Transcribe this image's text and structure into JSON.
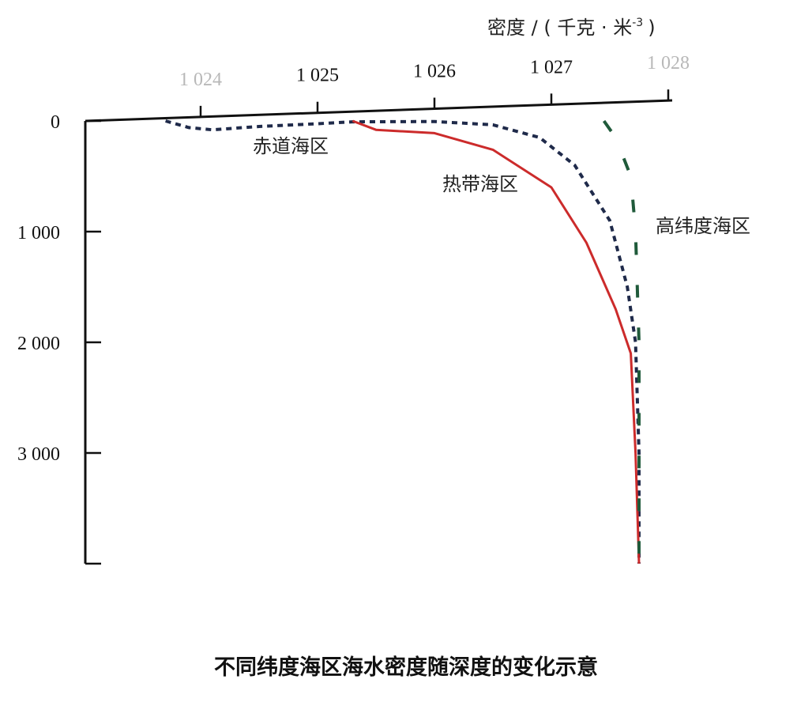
{
  "chart_data": {
    "type": "line",
    "x_axis_label": "密度 / ( 千克 · 米",
    "x_axis_label_exponent": "-3",
    "x_axis_label_close": ")",
    "x_ticks": [
      {
        "value": 1024,
        "label": "1 024",
        "faint": true
      },
      {
        "value": 1025,
        "label": "1 025",
        "faint": false
      },
      {
        "value": 1026,
        "label": "1 026",
        "faint": false
      },
      {
        "value": 1027,
        "label": "1 027",
        "faint": false
      },
      {
        "value": 1028,
        "label": "1 028",
        "faint": true
      }
    ],
    "y_ticks": [
      {
        "value": 0,
        "label": "0"
      },
      {
        "value": 1000,
        "label": "1 000"
      },
      {
        "value": 2000,
        "label": "2 000"
      },
      {
        "value": 3000,
        "label": "3 000"
      }
    ],
    "xlim": [
      1023,
      1028.2
    ],
    "ylim": [
      0,
      4000
    ],
    "series": [
      {
        "name": "赤道海区",
        "style": "dotted",
        "color": "#1f2a4a",
        "points": [
          [
            1023.7,
            0
          ],
          [
            1023.9,
            60
          ],
          [
            1024.1,
            80
          ],
          [
            1024.5,
            50
          ],
          [
            1025.0,
            25
          ],
          [
            1025.3,
            8
          ],
          [
            1026.0,
            5
          ],
          [
            1026.5,
            35
          ],
          [
            1026.9,
            150
          ],
          [
            1027.2,
            400
          ],
          [
            1027.5,
            900
          ],
          [
            1027.65,
            1500
          ],
          [
            1027.72,
            2000
          ],
          [
            1027.75,
            3000
          ],
          [
            1027.75,
            4000
          ]
        ]
      },
      {
        "name": "热带海区",
        "style": "solid",
        "color": "#cc2b2b",
        "points": [
          [
            1025.3,
            0
          ],
          [
            1025.5,
            80
          ],
          [
            1026.0,
            110
          ],
          [
            1026.5,
            260
          ],
          [
            1027.0,
            600
          ],
          [
            1027.3,
            1100
          ],
          [
            1027.55,
            1700
          ],
          [
            1027.68,
            2100
          ],
          [
            1027.72,
            3000
          ],
          [
            1027.75,
            4000
          ]
        ]
      },
      {
        "name": "高纬度海区",
        "style": "dashed",
        "color": "#1f5a3a",
        "points": [
          [
            1027.45,
            0
          ],
          [
            1027.55,
            150
          ],
          [
            1027.68,
            500
          ],
          [
            1027.72,
            1000
          ],
          [
            1027.75,
            2000
          ],
          [
            1027.75,
            3000
          ],
          [
            1027.75,
            4000
          ]
        ]
      }
    ]
  },
  "caption": "不同纬度海区海水密度随深度的变化示意"
}
